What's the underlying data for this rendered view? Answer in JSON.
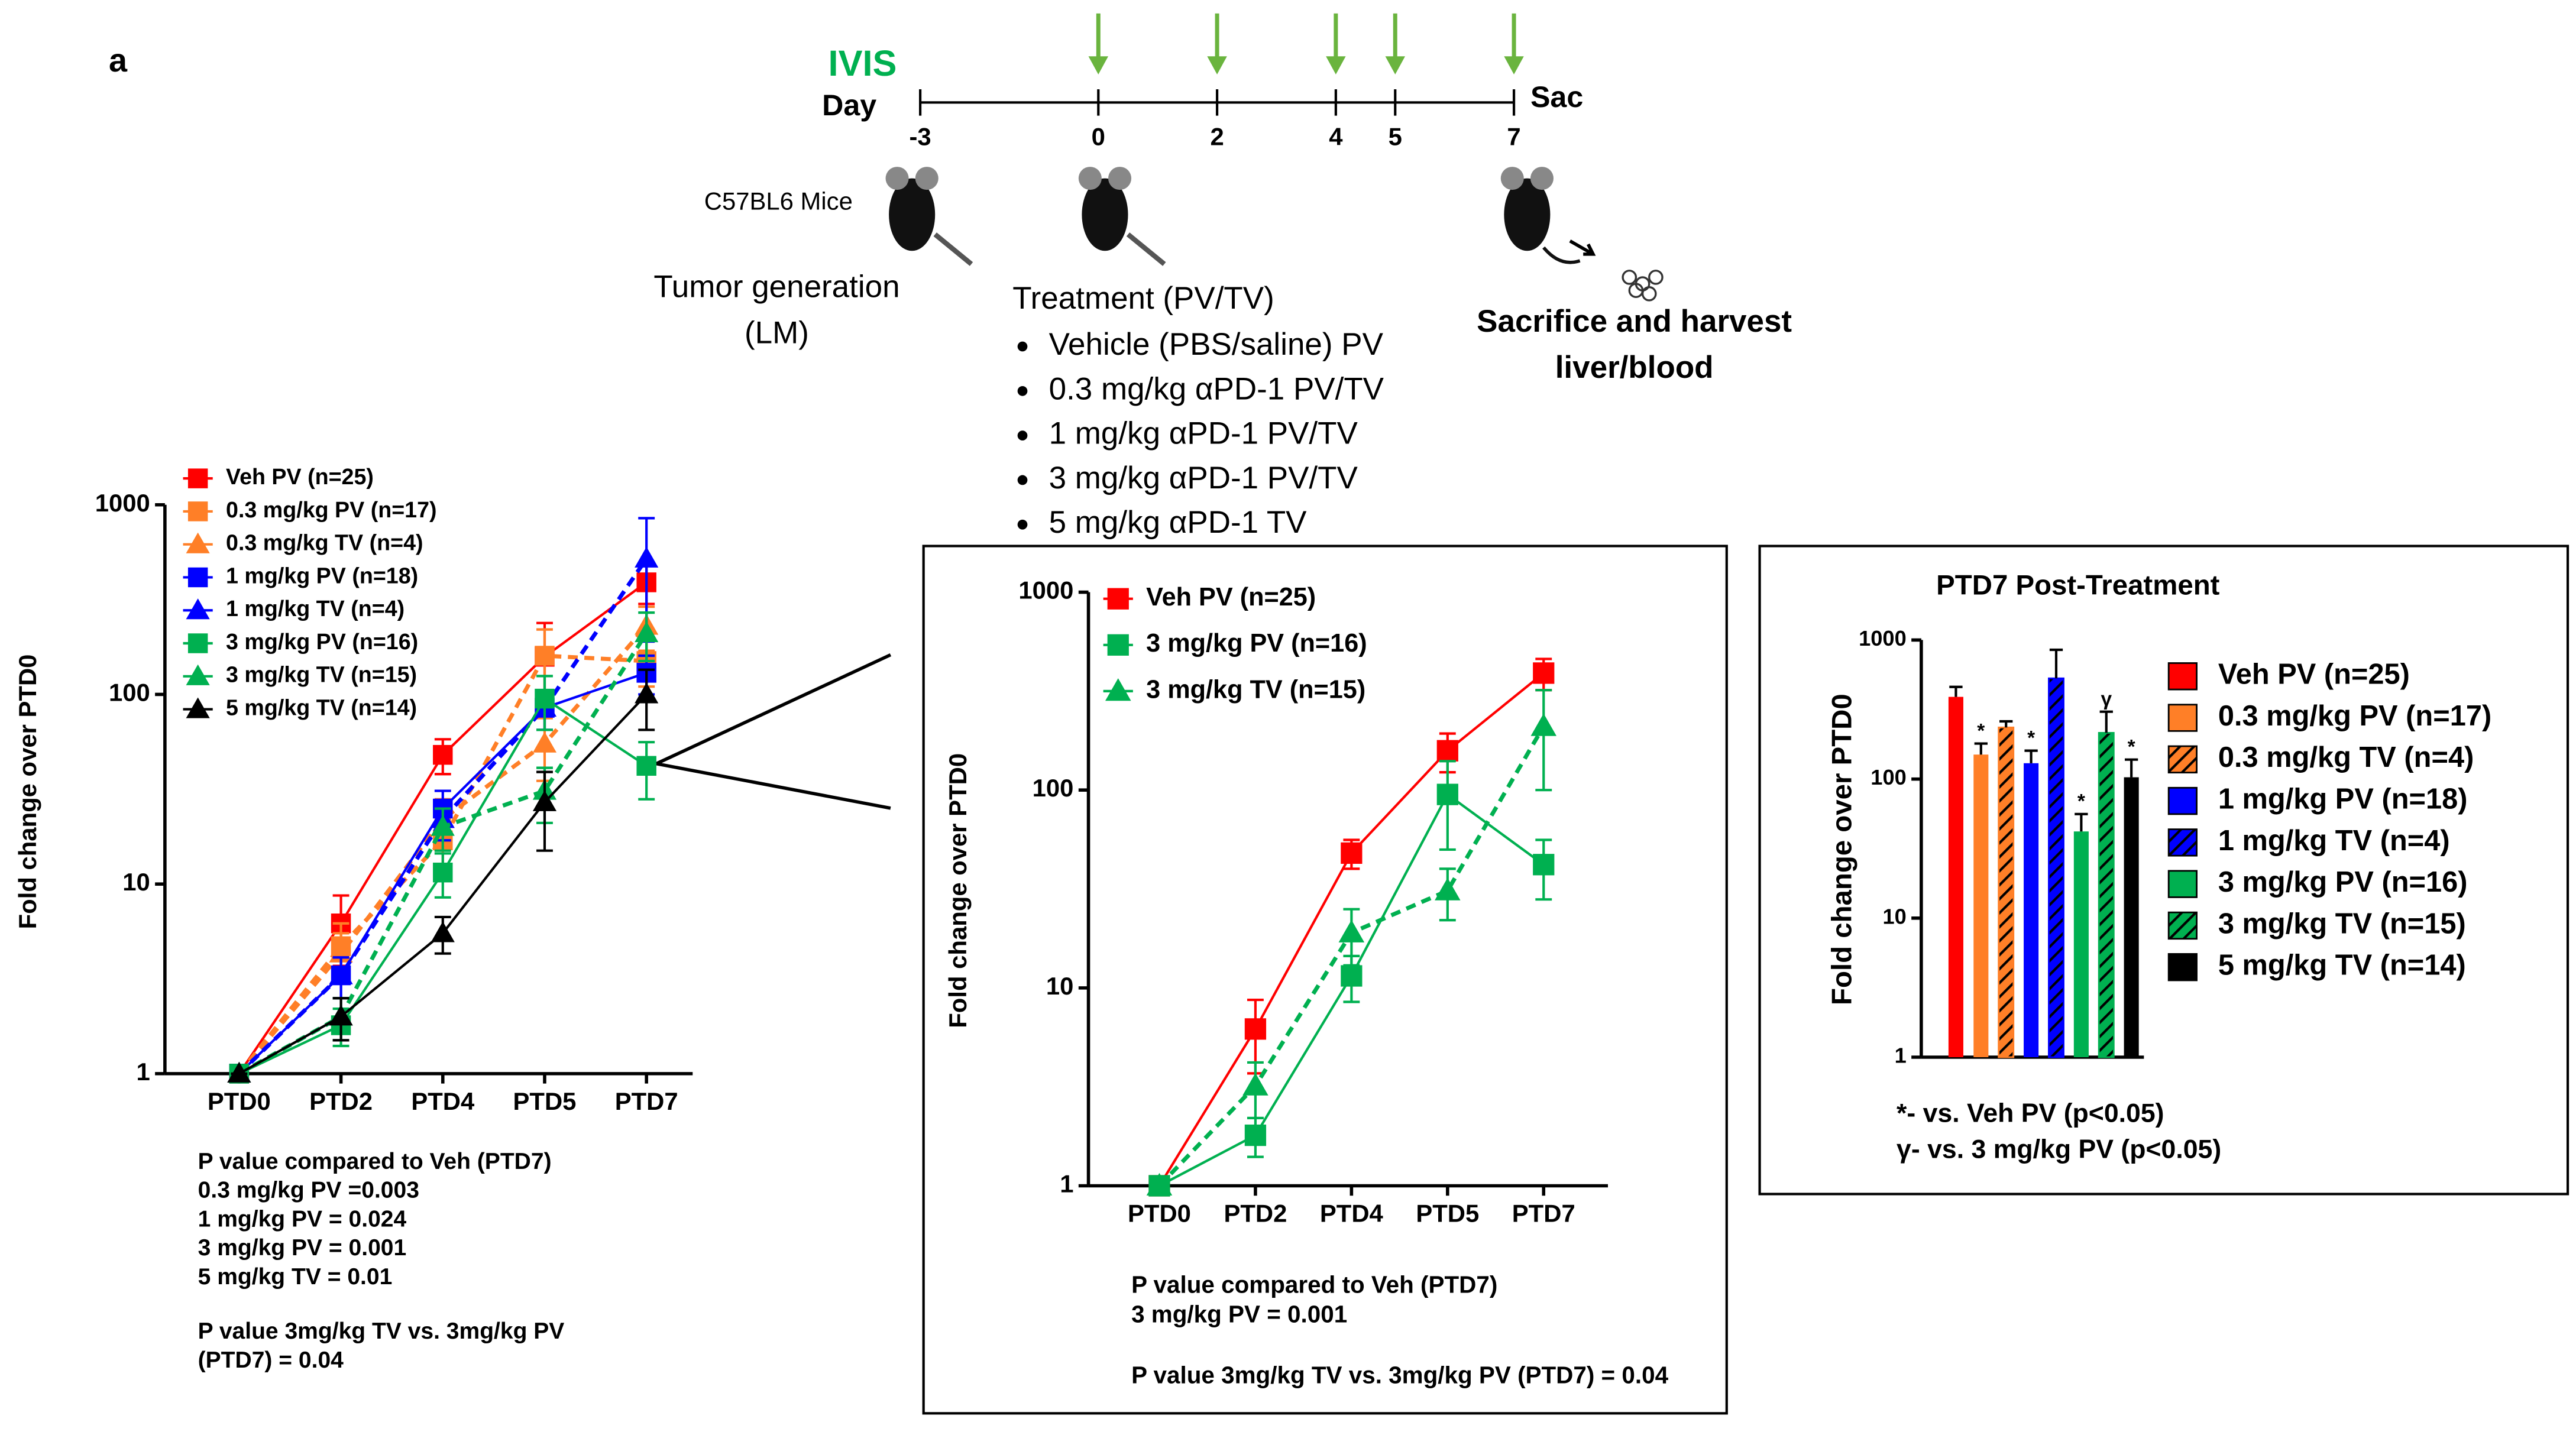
{
  "panel_label": "a",
  "timeline": {
    "imaging": "IVIS",
    "day_label": "Day",
    "end_label": "Sac",
    "days": [
      -3,
      0,
      2,
      4,
      5,
      7
    ],
    "dose_days": [
      0,
      2,
      4,
      5,
      7
    ],
    "strain": "C57BL6 Mice",
    "tumor": [
      "Tumor generation",
      "(LM)"
    ],
    "treatment_title": "Treatment (PV/TV)",
    "treatments": [
      "Vehicle (PBS/saline) PV",
      "0.3 mg/kg αPD-1 PV/TV",
      "1 mg/kg αPD-1 PV/TV",
      "3 mg/kg αPD-1 PV/TV",
      "5 mg/kg αPD-1 TV"
    ],
    "sacrifice": [
      "Sacrifice and harvest",
      "liver/blood"
    ]
  },
  "chart_data": [
    {
      "type": "line",
      "log_y": true,
      "ylabel": "Fold change over PTD0",
      "categories": [
        "PTD0",
        "PTD2",
        "PTD4",
        "PTD5",
        "PTD7"
      ],
      "ylim": [
        1,
        1000
      ],
      "yticks": [
        1,
        10,
        100,
        1000
      ],
      "series": [
        {
          "name": "Veh PV (n=25)",
          "color": "#ff0000",
          "marker": "square",
          "dashed": false,
          "values": [
            1,
            6.2,
            48,
            158,
            390
          ],
          "errors": [
            0,
            2.5,
            10,
            80,
            90
          ]
        },
        {
          "name": "0.3 mg/kg PV (n=17)",
          "color": "#ff7f27",
          "marker": "square",
          "dashed": true,
          "values": [
            1,
            4.7,
            17,
            160,
            150
          ],
          "errors": [
            0,
            1.5,
            5,
            60,
            40
          ]
        },
        {
          "name": "0.3 mg/kg TV (n=4)",
          "color": "#ff7f27",
          "marker": "triangle",
          "dashed": true,
          "values": [
            1,
            4.3,
            22,
            55,
            230
          ],
          "errors": [
            0,
            1.2,
            6,
            20,
            60
          ]
        },
        {
          "name": "1 mg/kg PV (n=18)",
          "color": "#0000ff",
          "marker": "square",
          "dashed": false,
          "values": [
            1,
            3.3,
            25,
            85,
            130
          ],
          "errors": [
            0,
            0.8,
            6,
            20,
            30
          ]
        },
        {
          "name": "1 mg/kg TV (n=4)",
          "color": "#0000ff",
          "marker": "triangle",
          "dashed": true,
          "values": [
            1,
            3.3,
            22,
            85,
            520
          ],
          "errors": [
            0,
            0.8,
            5,
            20,
            330
          ]
        },
        {
          "name": "3 mg/kg PV (n=16)",
          "color": "#00b050",
          "marker": "square",
          "dashed": false,
          "values": [
            1,
            1.8,
            11.5,
            95,
            42
          ],
          "errors": [
            0,
            0.4,
            3,
            30,
            14
          ]
        },
        {
          "name": "3 mg/kg TV (n=15)",
          "color": "#00b050",
          "marker": "triangle",
          "dashed": true,
          "values": [
            1,
            2,
            20,
            31,
            210
          ],
          "errors": [
            0,
            0.5,
            5,
            10,
            60
          ]
        },
        {
          "name": "5 mg/kg TV (n=14)",
          "color": "#000000",
          "marker": "triangle",
          "dashed": false,
          "values": [
            1,
            2,
            5.5,
            27,
            100
          ],
          "errors": [
            0,
            0.5,
            1.2,
            12,
            35
          ]
        }
      ],
      "notes": [
        [
          "P value compared to Veh (PTD7)",
          "0.3 mg/kg PV =0.003",
          "1 mg/kg PV = 0.024",
          "3 mg/kg PV = 0.001",
          "5 mg/kg TV = 0.01"
        ],
        [
          "P value 3mg/kg TV vs. 3mg/kg PV",
          "(PTD7) = 0.04"
        ]
      ]
    },
    {
      "type": "line",
      "log_y": true,
      "ylabel": "Fold change over PTD0",
      "categories": [
        "PTD0",
        "PTD2",
        "PTD4",
        "PTD5",
        "PTD7"
      ],
      "ylim": [
        1,
        1000
      ],
      "yticks": [
        1,
        10,
        100,
        1000
      ],
      "series": [
        {
          "name": "Veh PV (n=25)",
          "color": "#ff0000",
          "marker": "square",
          "dashed": false,
          "values": [
            1,
            6.2,
            48,
            158,
            390
          ],
          "errors": [
            0,
            2.5,
            8,
            35,
            70
          ]
        },
        {
          "name": "3 mg/kg PV (n=16)",
          "color": "#00b050",
          "marker": "square",
          "dashed": false,
          "values": [
            1,
            1.8,
            11.5,
            95,
            42
          ],
          "errors": [
            0,
            0.4,
            3,
            45,
            14
          ]
        },
        {
          "name": "3 mg/kg TV (n=15)",
          "color": "#00b050",
          "marker": "triangle",
          "dashed": true,
          "values": [
            1,
            3.2,
            19,
            31,
            210
          ],
          "errors": [
            0,
            1,
            6,
            9,
            110
          ]
        }
      ],
      "notes": [
        [
          "P value compared to Veh (PTD7)",
          "3 mg/kg PV = 0.001"
        ],
        [
          "P value 3mg/kg TV vs. 3mg/kg PV (PTD7) = 0.04"
        ]
      ]
    },
    {
      "type": "bar",
      "log_y": true,
      "title": "PTD7 Post-Treatment",
      "ylabel": "Fold change over PTD0",
      "categories": [
        "Veh PV (n=25)",
        "0.3 mg/kg PV (n=17)",
        "0.3 mg/kg TV (n=4)",
        "1 mg/kg PV (n=18)",
        "1 mg/kg TV (n=4)",
        "3 mg/kg PV (n=16)",
        "3 mg/kg TV (n=15)",
        "5 mg/kg TV (n=14)"
      ],
      "colors": [
        "#ff0000",
        "#ff7f27",
        "#ff7f27",
        "#0000ff",
        "#0000ff",
        "#00b050",
        "#00b050",
        "#000000"
      ],
      "hatched": [
        false,
        false,
        true,
        false,
        true,
        false,
        true,
        false
      ],
      "values": [
        390,
        150,
        235,
        130,
        530,
        42,
        215,
        103
      ],
      "errors": [
        70,
        30,
        25,
        30,
        320,
        14,
        90,
        35
      ],
      "annotations": [
        null,
        "*",
        null,
        "*",
        null,
        "*",
        "γ",
        "*"
      ],
      "ylim": [
        1,
        1000
      ],
      "yticks": [
        1,
        10,
        100,
        1000
      ],
      "notes": [
        [
          "*- vs. Veh PV (p<0.05)"
        ],
        [
          "γ- vs. 3 mg/kg PV (p<0.05)"
        ]
      ]
    }
  ]
}
